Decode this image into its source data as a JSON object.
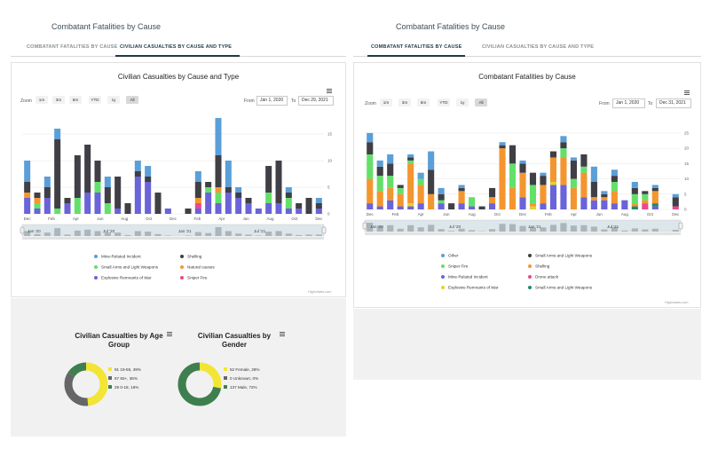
{
  "left": {
    "page_title": "Combatant Fatalities by Cause",
    "tabs": [
      {
        "label": "COMBATANT FATALITIES BY CAUSE",
        "active": false
      },
      {
        "label": "CIVILIAN CASUALTIES BY CAUSE AND TYPE",
        "active": true
      }
    ],
    "zoom_label": "Zoom",
    "zoom_buttons": [
      "1m",
      "3m",
      "6m",
      "YTD",
      "1y",
      "All"
    ],
    "active_zoom": "All",
    "from_label": "From",
    "from_value": "Jan 1, 2020",
    "to_label": "To",
    "to_value": "Dec 29, 2021",
    "credits": "Highcharts.com",
    "navigator_labels": [
      "Jan '20",
      "Jul '20",
      "Jan '21",
      "Jul '21"
    ]
  },
  "right": {
    "page_title": "Combatant Fatalities by Cause",
    "tabs": [
      {
        "label": "COMBATANT FATALITIES BY CAUSE",
        "active": true
      },
      {
        "label": "CIVILIAN CASUALTIES BY CAUSE AND TYPE",
        "active": false
      }
    ],
    "zoom_label": "Zoom",
    "zoom_buttons": [
      "1m",
      "3m",
      "6m",
      "YTD",
      "1y",
      "All"
    ],
    "active_zoom": "All",
    "from_label": "From",
    "from_value": "Jan 1, 2020",
    "to_label": "To",
    "to_value": "Dec 31, 2021",
    "credits": "Highcharts.com",
    "navigator_labels": [
      "Jan '20",
      "Jul '20",
      "Jan '21",
      "Jul '21"
    ]
  },
  "chart_data": [
    {
      "id": "civilian",
      "type": "bar",
      "stacked": true,
      "title": "Civilian Casualties by Cause and Type",
      "x_tick_labels": [
        "Dec",
        "Feb",
        "Apr",
        "Jun",
        "Aug",
        "Oct",
        "Dec",
        "Feb",
        "Apr",
        "Jun",
        "Aug",
        "Oct",
        "Dec"
      ],
      "y_ticks": [
        0,
        5,
        10,
        15
      ],
      "ylim": [
        0,
        17
      ],
      "legend_position": "bottom",
      "series": [
        {
          "name": "Explosive Remnants of War",
          "color": "#6a63d9",
          "values": [
            3,
            1,
            3,
            0,
            2,
            0,
            4,
            4,
            0,
            1,
            0,
            7,
            6,
            0,
            1,
            0,
            0,
            1,
            4,
            2,
            4,
            3,
            2,
            1,
            2,
            2,
            1,
            1,
            0,
            1
          ]
        },
        {
          "name": "Sniper Fire",
          "color": "#e84a8e",
          "values": [
            0,
            0,
            0,
            0,
            0,
            0,
            0,
            0,
            0,
            0,
            0,
            0,
            0,
            0,
            0,
            0,
            0,
            1,
            0,
            0,
            0,
            0,
            0,
            0,
            0,
            0,
            0,
            0,
            0,
            0
          ]
        },
        {
          "name": "Small Arms and Light Weapons",
          "color": "#63e06a",
          "values": [
            0,
            1,
            0,
            1,
            0,
            3,
            0,
            2,
            2,
            0,
            0,
            0,
            0,
            0,
            0,
            0,
            0,
            0,
            1,
            2,
            0,
            0,
            0,
            0,
            2,
            0,
            2,
            0,
            0,
            0
          ]
        },
        {
          "name": "Natural causes",
          "color": "#f4962f",
          "values": [
            1,
            1,
            0,
            0,
            0,
            0,
            0,
            0,
            0,
            0,
            0,
            0,
            0,
            0,
            0,
            0,
            0,
            1,
            0,
            1,
            0,
            0,
            0,
            0,
            0,
            0,
            0,
            0,
            0,
            0
          ]
        },
        {
          "name": "Shelling",
          "color": "#3f3f45",
          "values": [
            2,
            1,
            2,
            13,
            1,
            8,
            9,
            4,
            3,
            6,
            2,
            1,
            1,
            4,
            0,
            0,
            1,
            3,
            1,
            6,
            1,
            1,
            1,
            0,
            5,
            8,
            1,
            1,
            3,
            1
          ]
        },
        {
          "name": "Mine-Related Incident",
          "color": "#5b9fd8",
          "values": [
            4,
            0,
            2,
            2,
            0,
            0,
            0,
            0,
            2,
            0,
            0,
            2,
            2,
            0,
            0,
            0,
            0,
            2,
            0,
            7,
            5,
            1,
            0,
            0,
            0,
            0,
            1,
            0,
            0,
            1
          ]
        }
      ]
    },
    {
      "id": "combatant",
      "type": "bar",
      "stacked": true,
      "title": "Combatant Fatalities by Cause",
      "x_tick_labels": [
        "Dec",
        "Feb",
        "Apr",
        "Jun",
        "Aug",
        "Oct",
        "Dec",
        "Feb",
        "Apr",
        "Jun",
        "Aug",
        "Oct",
        "Dec"
      ],
      "y_ticks": [
        0,
        5,
        10,
        15,
        20,
        25
      ],
      "ylim": [
        0,
        27
      ],
      "legend_position": "bottom",
      "series": [
        {
          "name": "Mine-Related Incident",
          "color": "#6a63d9",
          "values": [
            2,
            1,
            3,
            1,
            1,
            2,
            0,
            2,
            0,
            2,
            1,
            0,
            2,
            0,
            0,
            4,
            0,
            2,
            8,
            8,
            0,
            4,
            3,
            3,
            2,
            3,
            0,
            0,
            1,
            0,
            0
          ]
        },
        {
          "name": "Explosive Remnants of War",
          "color": "#e8cf2f",
          "values": [
            0,
            0,
            0,
            0,
            1,
            0,
            0,
            0,
            0,
            0,
            0,
            0,
            0,
            0,
            0,
            0,
            1,
            0,
            1,
            0,
            0,
            0,
            0,
            0,
            0,
            0,
            0,
            0,
            0,
            0,
            0
          ]
        },
        {
          "name": "Drone attack",
          "color": "#e84a8e",
          "values": [
            0,
            0,
            0,
            0,
            0,
            0,
            0,
            0,
            0,
            0,
            0,
            0,
            0,
            0,
            0,
            0,
            0,
            0,
            0,
            0,
            0,
            0,
            0,
            0,
            0,
            0,
            0,
            2,
            0,
            0,
            1
          ]
        },
        {
          "name": "Small Arms and Light Weapons",
          "color": "#1f8a6e",
          "values": [
            0,
            0,
            0,
            0,
            0,
            0,
            0,
            0,
            0,
            0,
            0,
            0,
            0,
            0,
            0,
            0,
            0,
            0,
            0,
            0,
            0,
            0,
            0,
            0,
            0,
            0,
            1,
            0,
            1,
            0,
            0
          ]
        },
        {
          "name": "Shelling",
          "color": "#f4962f",
          "values": [
            8,
            5,
            4,
            4,
            13,
            6,
            5,
            0,
            0,
            4,
            0,
            0,
            2,
            20,
            7,
            8,
            1,
            6,
            8,
            9,
            7,
            8,
            1,
            1,
            4,
            0,
            1,
            1,
            4,
            0,
            0
          ]
        },
        {
          "name": "Sniper Fire",
          "color": "#63e06a",
          "values": [
            8,
            5,
            4,
            2,
            1,
            2,
            0,
            1,
            0,
            0,
            3,
            0,
            0,
            0,
            8,
            0,
            6,
            0,
            0,
            3,
            3,
            2,
            0,
            0,
            3,
            0,
            3,
            2,
            0,
            0,
            0
          ]
        },
        {
          "name": "Small Arms and Light Weapons",
          "color": "#3f3f45",
          "values": [
            4,
            3,
            4,
            1,
            1,
            0,
            8,
            2,
            2,
            1,
            0,
            1,
            3,
            1,
            6,
            3,
            4,
            3,
            2,
            2,
            6,
            4,
            5,
            1,
            2,
            0,
            2,
            1,
            1,
            0,
            3
          ]
        },
        {
          "name": "Other",
          "color": "#5b9fd8",
          "values": [
            3,
            2,
            3,
            0,
            1,
            2,
            6,
            2,
            0,
            1,
            0,
            0,
            0,
            1,
            0,
            1,
            0,
            1,
            0,
            2,
            1,
            0,
            5,
            1,
            2,
            0,
            2,
            0,
            1,
            0,
            1
          ]
        }
      ]
    },
    {
      "id": "age",
      "type": "pie",
      "title": "Civilian Casualties by Age Group",
      "slices": [
        {
          "label": "91 19-55, 49%",
          "value": 49,
          "color": "#f2e534"
        },
        {
          "label": "67 55+, 36%",
          "value": 36,
          "color": "#666666"
        },
        {
          "label": "29 0-18, 16%",
          "value": 16,
          "color": "#3f7f4f"
        }
      ]
    },
    {
      "id": "gender",
      "type": "pie",
      "title": "Civilian Casualties by Gender",
      "slices": [
        {
          "label": "52 Female, 28%",
          "value": 28,
          "color": "#f2e534"
        },
        {
          "label": "0 Unknown, 0%",
          "value": 0,
          "color": "#666666"
        },
        {
          "label": "137 Male, 72%",
          "value": 72,
          "color": "#3f7f4f"
        }
      ]
    }
  ]
}
